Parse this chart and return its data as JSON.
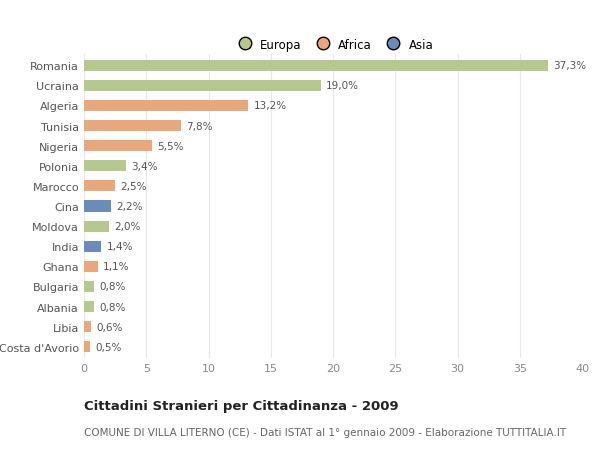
{
  "countries": [
    "Romania",
    "Ucraina",
    "Algeria",
    "Tunisia",
    "Nigeria",
    "Polonia",
    "Marocco",
    "Cina",
    "Moldova",
    "India",
    "Ghana",
    "Bulgaria",
    "Albania",
    "Libia",
    "Costa d'Avorio"
  ],
  "values": [
    37.3,
    19.0,
    13.2,
    7.8,
    5.5,
    3.4,
    2.5,
    2.2,
    2.0,
    1.4,
    1.1,
    0.8,
    0.8,
    0.6,
    0.5
  ],
  "labels": [
    "37,3%",
    "19,0%",
    "13,2%",
    "7,8%",
    "5,5%",
    "3,4%",
    "2,5%",
    "2,2%",
    "2,0%",
    "1,4%",
    "1,1%",
    "0,8%",
    "0,8%",
    "0,6%",
    "0,5%"
  ],
  "continents": [
    "Europa",
    "Europa",
    "Africa",
    "Africa",
    "Africa",
    "Europa",
    "Africa",
    "Asia",
    "Europa",
    "Asia",
    "Africa",
    "Europa",
    "Europa",
    "Africa",
    "Africa"
  ],
  "colors": {
    "Europa": "#b5c98e",
    "Africa": "#e8a87c",
    "Asia": "#6b8cba"
  },
  "xlim": [
    0,
    40
  ],
  "xticks": [
    0,
    5,
    10,
    15,
    20,
    25,
    30,
    35,
    40
  ],
  "title": "Cittadini Stranieri per Cittadinanza - 2009",
  "subtitle": "COMUNE DI VILLA LITERNO (CE) - Dati ISTAT al 1° gennaio 2009 - Elaborazione TUTTITALIA.IT",
  "bg_color": "#ffffff",
  "plot_bg_color": "#ffffff",
  "grid_color": "#e8e8e8",
  "bar_height": 0.55,
  "label_fontsize": 7.5,
  "ytick_fontsize": 8,
  "xtick_fontsize": 8,
  "title_fontsize": 9.5,
  "subtitle_fontsize": 7.5
}
